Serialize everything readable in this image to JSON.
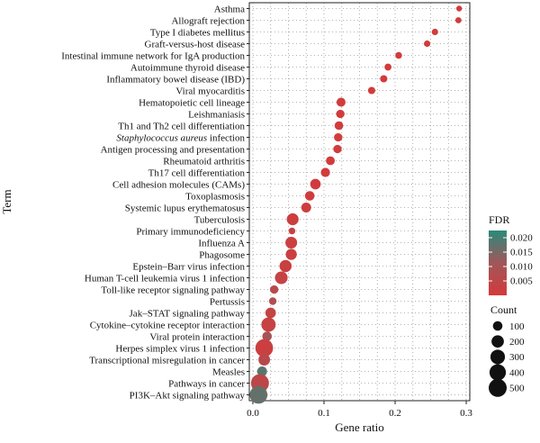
{
  "chart_data": {
    "type": "scatter",
    "xlabel": "Gene ratio",
    "ylabel": "Term",
    "xlim": [
      -0.005,
      0.305
    ],
    "x_ticks": [
      0.0,
      0.1,
      0.2,
      0.3
    ],
    "x_tick_labels": [
      "0.0",
      "0.1",
      "0.2",
      "0.3"
    ],
    "grid": true,
    "legend_position": "right",
    "color_legend": {
      "title": "FDR",
      "ticks": [
        0.005,
        0.01,
        0.015,
        0.02
      ],
      "tick_labels": [
        "0.005",
        "0.010",
        "0.015",
        "0.020"
      ],
      "range": [
        0.0,
        0.0225
      ],
      "low_color": "#d43a3a",
      "high_color": "#2a8a7a"
    },
    "size_legend": {
      "title": "Count",
      "values": [
        100,
        200,
        300,
        400,
        500
      ],
      "labels": [
        "100",
        "200",
        "300",
        "400",
        "500"
      ]
    },
    "points": [
      {
        "term": "Asthma",
        "italic_part": "",
        "gene_ratio": 0.29,
        "count": 20,
        "fdr": 0.0002
      },
      {
        "term": "Allograft rejection",
        "italic_part": "",
        "gene_ratio": 0.289,
        "count": 25,
        "fdr": 0.0002
      },
      {
        "term": "Type I diabetes mellitus",
        "italic_part": "",
        "gene_ratio": 0.256,
        "count": 30,
        "fdr": 0.0003
      },
      {
        "term": "Graft-versus-host disease",
        "italic_part": "",
        "gene_ratio": 0.245,
        "count": 30,
        "fdr": 0.0003
      },
      {
        "term": "Intestinal immune network for IgA production",
        "italic_part": "",
        "gene_ratio": 0.205,
        "count": 35,
        "fdr": 0.0004
      },
      {
        "term": "Autoimmune thyroid disease",
        "italic_part": "",
        "gene_ratio": 0.19,
        "count": 40,
        "fdr": 0.0004
      },
      {
        "term": "Inflammatory bowel disease (IBD)",
        "italic_part": "",
        "gene_ratio": 0.184,
        "count": 45,
        "fdr": 0.0005
      },
      {
        "term": "Viral myocarditis",
        "italic_part": "",
        "gene_ratio": 0.167,
        "count": 45,
        "fdr": 0.0005
      },
      {
        "term": "Hematopoietic cell lineage",
        "italic_part": "",
        "gene_ratio": 0.124,
        "count": 85,
        "fdr": 0.0006
      },
      {
        "term": "Leishmaniasis",
        "italic_part": "",
        "gene_ratio": 0.123,
        "count": 70,
        "fdr": 0.0006
      },
      {
        "term": "Th1 and Th2 cell differentiation",
        "italic_part": "",
        "gene_ratio": 0.121,
        "count": 75,
        "fdr": 0.0006
      },
      {
        "term": " infection",
        "italic_part": "Staphylococcus aureus",
        "gene_ratio": 0.12,
        "count": 70,
        "fdr": 0.0006
      },
      {
        "term": "Antigen processing and presentation",
        "italic_part": "",
        "gene_ratio": 0.119,
        "count": 70,
        "fdr": 0.0006
      },
      {
        "term": "Rheumatoid arthritis",
        "italic_part": "",
        "gene_ratio": 0.109,
        "count": 80,
        "fdr": 0.0007
      },
      {
        "term": "Th17 cell differentiation",
        "italic_part": "",
        "gene_ratio": 0.102,
        "count": 90,
        "fdr": 0.0008
      },
      {
        "term": "Cell adhesion molecules (CAMs)",
        "italic_part": "",
        "gene_ratio": 0.088,
        "count": 130,
        "fdr": 0.0009
      },
      {
        "term": "Toxoplasmosis",
        "italic_part": "",
        "gene_ratio": 0.08,
        "count": 100,
        "fdr": 0.001
      },
      {
        "term": "Systemic lupus erythematosus",
        "italic_part": "",
        "gene_ratio": 0.075,
        "count": 110,
        "fdr": 0.0012
      },
      {
        "term": "Tuberculosis",
        "italic_part": "",
        "gene_ratio": 0.056,
        "count": 180,
        "fdr": 0.0015
      },
      {
        "term": "Primary immunodeficiency",
        "italic_part": "",
        "gene_ratio": 0.055,
        "count": 35,
        "fdr": 0.003
      },
      {
        "term": "Influenza A",
        "italic_part": "",
        "gene_ratio": 0.054,
        "count": 175,
        "fdr": 0.002
      },
      {
        "term": "Phagosome",
        "italic_part": "",
        "gene_ratio": 0.054,
        "count": 150,
        "fdr": 0.002
      },
      {
        "term": "Epstein–Barr virus infection",
        "italic_part": "",
        "gene_ratio": 0.046,
        "count": 190,
        "fdr": 0.0025
      },
      {
        "term": "Human T-cell leukemia virus 1 infection",
        "italic_part": "",
        "gene_ratio": 0.04,
        "count": 210,
        "fdr": 0.003
      },
      {
        "term": "Toll-like receptor signaling pathway",
        "italic_part": "",
        "gene_ratio": 0.03,
        "count": 70,
        "fdr": 0.006
      },
      {
        "term": "Pertussis",
        "italic_part": "",
        "gene_ratio": 0.028,
        "count": 50,
        "fdr": 0.008
      },
      {
        "term": "Jak–STAT signaling pathway",
        "italic_part": "",
        "gene_ratio": 0.025,
        "count": 130,
        "fdr": 0.004
      },
      {
        "term": "Cytokine–cytokine receptor interaction",
        "italic_part": "",
        "gene_ratio": 0.022,
        "count": 290,
        "fdr": 0.003
      },
      {
        "term": "Viral protein interaction",
        "italic_part": "",
        "gene_ratio": 0.02,
        "count": 100,
        "fdr": 0.01
      },
      {
        "term": "Herpes simplex virus 1 infection",
        "italic_part": "",
        "gene_ratio": 0.016,
        "count": 480,
        "fdr": 0.002
      },
      {
        "term": "Transcriptional misregulation in cancer",
        "italic_part": "",
        "gene_ratio": 0.016,
        "count": 170,
        "fdr": 0.006
      },
      {
        "term": "Measles",
        "italic_part": "",
        "gene_ratio": 0.013,
        "count": 110,
        "fdr": 0.018
      },
      {
        "term": "Pathways in cancer",
        "italic_part": "",
        "gene_ratio": 0.01,
        "count": 500,
        "fdr": 0.005
      },
      {
        "term": "PI3K–Akt signaling pathway",
        "italic_part": "",
        "gene_ratio": 0.008,
        "count": 480,
        "fdr": 0.017
      }
    ]
  }
}
